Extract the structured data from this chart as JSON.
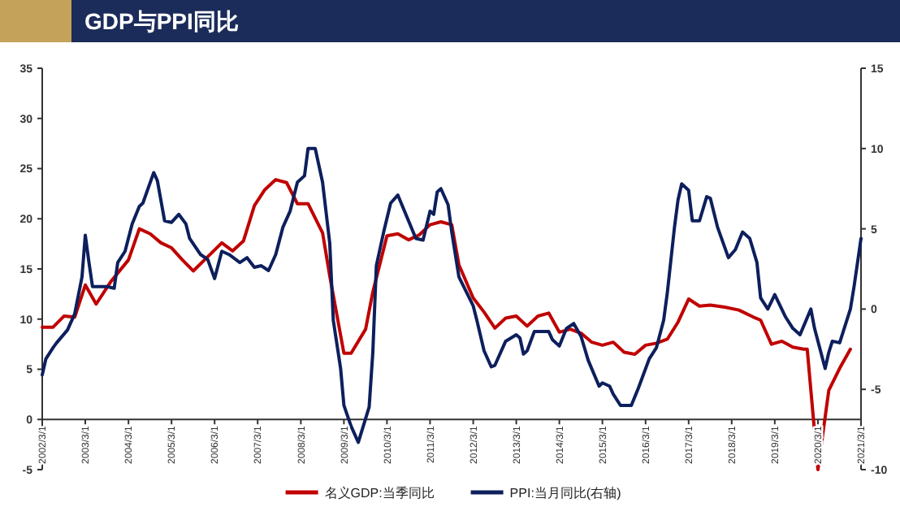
{
  "chart_data": {
    "type": "line",
    "title": "GDP与PPI同比",
    "legend": "bottom",
    "line_style": "solid",
    "marker": "none",
    "xlim": [
      "2002-03-01",
      "2021-03-01"
    ],
    "xticks": [
      {
        "value": "2002-03-01",
        "label": "2002/3/1"
      },
      {
        "value": "2003-03-01",
        "label": "2003/3/1"
      },
      {
        "value": "2004-03-01",
        "label": "2004/3/1"
      },
      {
        "value": "2005-03-01",
        "label": "2005/3/1"
      },
      {
        "value": "2006-03-01",
        "label": "2006/3/1"
      },
      {
        "value": "2007-03-01",
        "label": "2007/3/1"
      },
      {
        "value": "2008-03-01",
        "label": "2008/3/1"
      },
      {
        "value": "2009-03-01",
        "label": "2009/3/1"
      },
      {
        "value": "2010-03-01",
        "label": "2010/3/1"
      },
      {
        "value": "2011-03-01",
        "label": "2011/3/1"
      },
      {
        "value": "2012-03-01",
        "label": "2012/3/1"
      },
      {
        "value": "2013-03-01",
        "label": "2013/3/1"
      },
      {
        "value": "2014-03-01",
        "label": "2014/3/1"
      },
      {
        "value": "2015-03-01",
        "label": "2015/3/1"
      },
      {
        "value": "2016-03-01",
        "label": "2016/3/1"
      },
      {
        "value": "2017-03-01",
        "label": "2017/3/1"
      },
      {
        "value": "2018-03-01",
        "label": "2018/3/1"
      },
      {
        "value": "2019-03-01",
        "label": "2019/3/1"
      },
      {
        "value": "2020-03-01",
        "label": "2020/3/1"
      },
      {
        "value": "2021-03-01",
        "label": "2021/3/1"
      }
    ],
    "ylim": [
      -5,
      35
    ],
    "yticks": [
      -5,
      0,
      5,
      10,
      15,
      20,
      25,
      30,
      35
    ],
    "y2lim": [
      -10,
      15
    ],
    "y2ticks": [
      -10,
      -5,
      0,
      5,
      10,
      15
    ],
    "series": [
      {
        "name": "名义GDP:当季同比",
        "color": "#c00000",
        "axis": "y",
        "x": [
          "2002-03",
          "2002-06",
          "2002-09",
          "2002-12",
          "2003-03",
          "2003-06",
          "2003-10",
          "2004-03",
          "2004-06",
          "2004-09",
          "2004-12",
          "2005-03",
          "2005-06",
          "2005-09",
          "2006-01",
          "2006-05",
          "2006-08",
          "2006-11",
          "2007-02",
          "2007-05",
          "2007-08",
          "2007-11",
          "2008-02",
          "2008-05",
          "2008-09",
          "2008-11",
          "2009-03",
          "2009-05",
          "2009-09",
          "2009-11",
          "2010-03",
          "2010-06",
          "2010-09",
          "2010-12",
          "2011-03",
          "2011-06",
          "2011-09",
          "2011-11",
          "2012-03",
          "2012-06",
          "2012-09",
          "2012-12",
          "2013-03",
          "2013-06",
          "2013-09",
          "2013-12",
          "2014-03",
          "2014-06",
          "2014-09",
          "2014-12",
          "2015-03",
          "2015-06",
          "2015-09",
          "2015-12",
          "2016-03",
          "2016-06",
          "2016-09",
          "2016-12",
          "2017-03",
          "2017-06",
          "2017-09",
          "2018-01",
          "2018-05",
          "2018-09",
          "2018-11",
          "2019-02",
          "2019-05",
          "2019-08",
          "2019-11",
          "2019-12",
          "2020-03",
          "2020-06",
          "2020-09",
          "2020-12"
        ],
        "values": [
          9.2,
          9.2,
          10.3,
          10.2,
          13.4,
          11.5,
          13.7,
          15.9,
          19.0,
          18.5,
          17.6,
          17.1,
          15.9,
          14.8,
          16.2,
          17.6,
          16.8,
          17.8,
          21.3,
          22.9,
          23.9,
          23.6,
          21.5,
          21.5,
          18.6,
          14.3,
          6.6,
          6.6,
          9.0,
          12.7,
          18.3,
          18.5,
          17.9,
          18.4,
          19.4,
          19.7,
          19.4,
          15.4,
          12.1,
          10.7,
          9.1,
          10.1,
          10.3,
          9.3,
          10.3,
          10.6,
          8.7,
          9.0,
          8.6,
          7.7,
          7.4,
          7.7,
          6.7,
          6.5,
          7.4,
          7.6,
          8.0,
          9.7,
          12.0,
          11.3,
          11.4,
          11.2,
          10.9,
          10.2,
          9.9,
          7.5,
          7.8,
          7.2,
          7.0,
          7.0,
          -5.0,
          2.9,
          5.1,
          7.0
        ]
      },
      {
        "name": "PPI:当月同比(右轴)",
        "color": "#0d1f5c",
        "axis": "y2",
        "x": [
          "2002-03",
          "2002-04",
          "2002-06",
          "2002-07",
          "2002-10",
          "2002-12",
          "2003-02",
          "2003-03",
          "2003-04",
          "2003-05",
          "2003-09",
          "2003-11",
          "2003-12",
          "2004-02",
          "2004-04",
          "2004-06",
          "2004-07",
          "2004-10",
          "2004-11",
          "2005-01",
          "2005-03",
          "2005-05",
          "2005-07",
          "2005-08",
          "2005-11",
          "2006-01",
          "2006-03",
          "2006-05",
          "2006-07",
          "2006-10",
          "2006-12",
          "2007-02",
          "2007-04",
          "2007-06",
          "2007-08",
          "2007-10",
          "2007-12",
          "2008-02",
          "2008-04",
          "2008-05",
          "2008-07",
          "2008-09",
          "2008-11",
          "2008-12",
          "2009-02",
          "2009-03",
          "2009-05",
          "2009-07",
          "2009-10",
          "2009-11",
          "2009-12",
          "2010-02",
          "2010-04",
          "2010-06",
          "2010-11",
          "2011-01",
          "2011-03",
          "2011-04",
          "2011-05",
          "2011-06",
          "2011-08",
          "2011-09",
          "2011-11",
          "2012-03",
          "2012-04",
          "2012-06",
          "2012-08",
          "2012-09",
          "2012-12",
          "2013-03",
          "2013-04",
          "2013-05",
          "2013-06",
          "2013-08",
          "2013-11",
          "2013-12",
          "2014-01",
          "2014-03",
          "2014-05",
          "2014-07",
          "2014-09",
          "2014-11",
          "2015-02",
          "2015-03",
          "2015-05",
          "2015-06",
          "2015-08",
          "2015-11",
          "2016-01",
          "2016-04",
          "2016-06",
          "2016-08",
          "2016-09",
          "2016-11",
          "2016-12",
          "2017-01",
          "2017-03",
          "2017-04",
          "2017-06",
          "2017-08",
          "2017-09",
          "2017-11",
          "2018-02",
          "2018-04",
          "2018-06",
          "2018-08",
          "2018-10",
          "2018-11",
          "2019-01",
          "2019-03",
          "2019-06",
          "2019-08",
          "2019-10",
          "2020-01",
          "2020-02",
          "2020-05",
          "2020-06",
          "2020-07",
          "2020-09",
          "2020-12",
          "2021-01",
          "2021-03"
        ],
        "values": [
          -4.1,
          -3.1,
          -2.4,
          -2.1,
          -1.3,
          -0.3,
          2.0,
          4.6,
          2.9,
          1.4,
          1.4,
          1.3,
          2.9,
          3.6,
          5.3,
          6.4,
          6.6,
          8.5,
          8.0,
          5.5,
          5.4,
          5.9,
          5.3,
          4.4,
          3.4,
          3.1,
          1.9,
          3.6,
          3.4,
          2.9,
          3.2,
          2.6,
          2.7,
          2.4,
          3.4,
          5.1,
          6.1,
          7.9,
          8.3,
          10.0,
          10.0,
          7.9,
          4.1,
          -0.7,
          -3.7,
          -6.0,
          -7.3,
          -8.3,
          -6.1,
          -2.7,
          2.7,
          4.8,
          6.6,
          7.1,
          4.4,
          4.3,
          6.1,
          5.9,
          7.3,
          7.5,
          6.5,
          4.8,
          2.0,
          0.2,
          -0.7,
          -2.6,
          -3.6,
          -3.5,
          -2.0,
          -1.6,
          -1.8,
          -2.8,
          -2.6,
          -1.4,
          -1.4,
          -1.4,
          -1.9,
          -2.3,
          -1.2,
          -0.9,
          -1.7,
          -3.2,
          -4.8,
          -4.6,
          -4.8,
          -5.3,
          -6.0,
          -6.0,
          -4.9,
          -3.1,
          -2.4,
          -0.7,
          1.0,
          5.1,
          6.8,
          7.8,
          7.4,
          5.5,
          5.5,
          7.0,
          6.9,
          5.1,
          3.2,
          3.7,
          4.8,
          4.4,
          2.9,
          0.7,
          0.0,
          0.9,
          -0.5,
          -1.2,
          -1.6,
          0.0,
          -1.2,
          -3.7,
          -2.7,
          -2.0,
          -2.1,
          0.0,
          1.4,
          4.4
        ]
      }
    ]
  }
}
